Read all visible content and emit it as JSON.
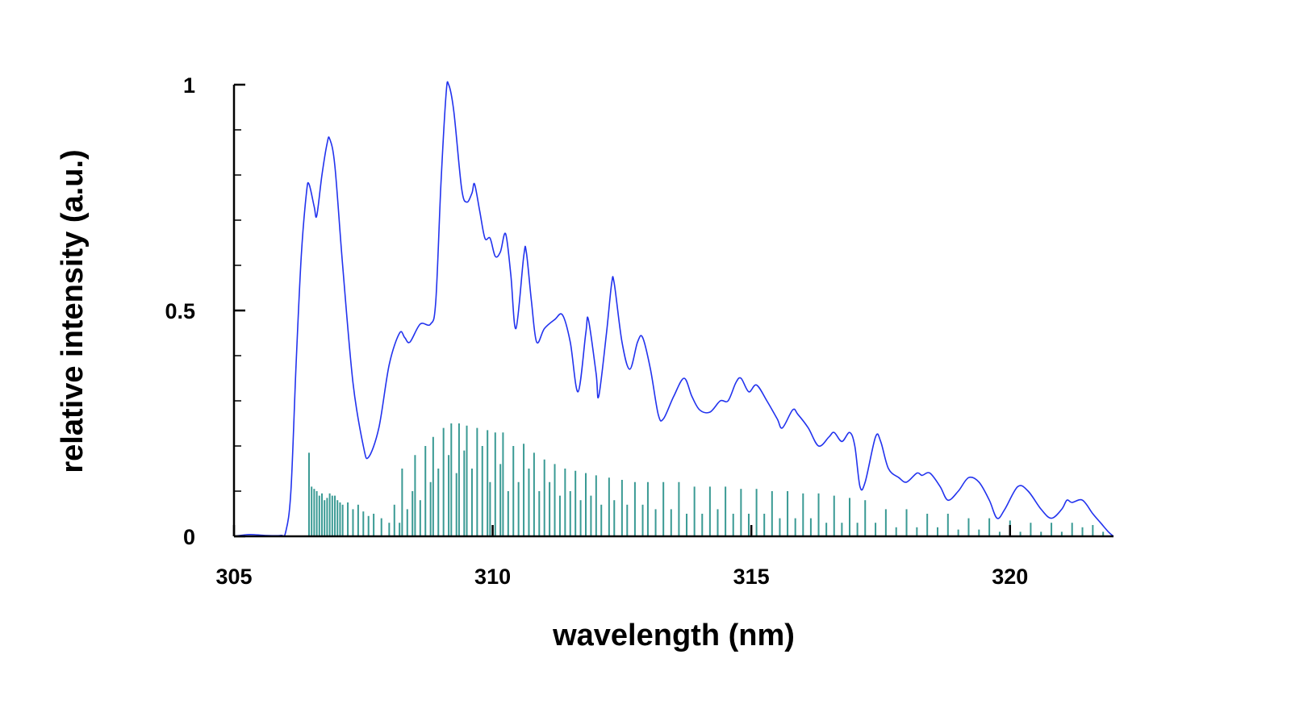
{
  "chart_data": {
    "type": "line",
    "title": "",
    "xlabel": "wavelength (nm)",
    "ylabel": "relative intensity (a.u.)",
    "xlim": [
      305,
      322
    ],
    "ylim": [
      0,
      1
    ],
    "x_ticks": [
      {
        "value": 305,
        "label": "305"
      },
      {
        "value": 310,
        "label": "310"
      },
      {
        "value": 315,
        "label": "315"
      },
      {
        "value": 320,
        "label": "320"
      }
    ],
    "y_ticks": [
      {
        "value": 0,
        "label": "0"
      },
      {
        "value": 0.5,
        "label": "0.5"
      },
      {
        "value": 1,
        "label": "1"
      }
    ],
    "y_minor_ticks": [
      0.1,
      0.2,
      0.3,
      0.4,
      0.6,
      0.7,
      0.8,
      0.9
    ],
    "grid": false,
    "legend": "none",
    "colors": {
      "spectrum": "#2233ee",
      "sticks": "#3a9a94",
      "axis": "#000000"
    },
    "series": [
      {
        "style": "line",
        "points": [
          [
            305.0,
            0.0
          ],
          [
            305.3,
            0.004
          ],
          [
            305.6,
            0.002
          ],
          [
            305.9,
            0.002
          ],
          [
            306.0,
            0.01
          ],
          [
            306.1,
            0.1
          ],
          [
            306.2,
            0.38
          ],
          [
            306.3,
            0.62
          ],
          [
            306.4,
            0.76
          ],
          [
            306.45,
            0.78
          ],
          [
            306.55,
            0.73
          ],
          [
            306.6,
            0.71
          ],
          [
            306.7,
            0.8
          ],
          [
            306.8,
            0.87
          ],
          [
            306.85,
            0.88
          ],
          [
            306.95,
            0.82
          ],
          [
            307.1,
            0.6
          ],
          [
            307.3,
            0.34
          ],
          [
            307.5,
            0.2
          ],
          [
            307.6,
            0.175
          ],
          [
            307.8,
            0.24
          ],
          [
            308.0,
            0.38
          ],
          [
            308.2,
            0.45
          ],
          [
            308.3,
            0.44
          ],
          [
            308.4,
            0.43
          ],
          [
            308.6,
            0.47
          ],
          [
            308.8,
            0.47
          ],
          [
            308.9,
            0.52
          ],
          [
            309.0,
            0.78
          ],
          [
            309.1,
            0.98
          ],
          [
            309.15,
            1.0
          ],
          [
            309.25,
            0.94
          ],
          [
            309.4,
            0.77
          ],
          [
            309.5,
            0.74
          ],
          [
            309.6,
            0.76
          ],
          [
            309.65,
            0.78
          ],
          [
            309.75,
            0.72
          ],
          [
            309.85,
            0.66
          ],
          [
            309.95,
            0.66
          ],
          [
            310.05,
            0.62
          ],
          [
            310.15,
            0.63
          ],
          [
            310.25,
            0.67
          ],
          [
            310.35,
            0.58
          ],
          [
            310.45,
            0.46
          ],
          [
            310.6,
            0.62
          ],
          [
            310.65,
            0.63
          ],
          [
            310.75,
            0.52
          ],
          [
            310.85,
            0.43
          ],
          [
            311.0,
            0.46
          ],
          [
            311.2,
            0.48
          ],
          [
            311.35,
            0.49
          ],
          [
            311.5,
            0.43
          ],
          [
            311.65,
            0.32
          ],
          [
            311.8,
            0.45
          ],
          [
            311.85,
            0.48
          ],
          [
            312.0,
            0.36
          ],
          [
            312.05,
            0.31
          ],
          [
            312.2,
            0.45
          ],
          [
            312.3,
            0.56
          ],
          [
            312.35,
            0.56
          ],
          [
            312.5,
            0.43
          ],
          [
            312.65,
            0.37
          ],
          [
            312.8,
            0.43
          ],
          [
            312.9,
            0.44
          ],
          [
            313.05,
            0.37
          ],
          [
            313.2,
            0.27
          ],
          [
            313.3,
            0.26
          ],
          [
            313.5,
            0.31
          ],
          [
            313.7,
            0.35
          ],
          [
            313.85,
            0.31
          ],
          [
            314.0,
            0.28
          ],
          [
            314.2,
            0.275
          ],
          [
            314.4,
            0.3
          ],
          [
            314.55,
            0.3
          ],
          [
            314.7,
            0.34
          ],
          [
            314.8,
            0.35
          ],
          [
            314.95,
            0.32
          ],
          [
            315.1,
            0.335
          ],
          [
            315.3,
            0.3
          ],
          [
            315.5,
            0.26
          ],
          [
            315.6,
            0.24
          ],
          [
            315.8,
            0.28
          ],
          [
            315.9,
            0.27
          ],
          [
            316.1,
            0.24
          ],
          [
            316.3,
            0.2
          ],
          [
            316.5,
            0.22
          ],
          [
            316.6,
            0.23
          ],
          [
            316.75,
            0.21
          ],
          [
            316.9,
            0.23
          ],
          [
            317.0,
            0.2
          ],
          [
            317.1,
            0.11
          ],
          [
            317.2,
            0.12
          ],
          [
            317.4,
            0.22
          ],
          [
            317.5,
            0.21
          ],
          [
            317.65,
            0.15
          ],
          [
            317.85,
            0.13
          ],
          [
            318.0,
            0.12
          ],
          [
            318.2,
            0.14
          ],
          [
            318.3,
            0.135
          ],
          [
            318.45,
            0.14
          ],
          [
            318.65,
            0.11
          ],
          [
            318.8,
            0.08
          ],
          [
            319.0,
            0.1
          ],
          [
            319.2,
            0.13
          ],
          [
            319.4,
            0.12
          ],
          [
            319.6,
            0.08
          ],
          [
            319.75,
            0.04
          ],
          [
            319.9,
            0.06
          ],
          [
            320.15,
            0.11
          ],
          [
            320.35,
            0.1
          ],
          [
            320.6,
            0.06
          ],
          [
            320.8,
            0.04
          ],
          [
            321.0,
            0.06
          ],
          [
            321.1,
            0.08
          ],
          [
            321.2,
            0.075
          ],
          [
            321.4,
            0.08
          ],
          [
            321.6,
            0.05
          ],
          [
            321.75,
            0.03
          ],
          [
            321.9,
            0.01
          ],
          [
            322.0,
            0.0
          ]
        ]
      },
      {
        "style": "stick",
        "points": [
          [
            306.45,
            0.185
          ],
          [
            306.5,
            0.11
          ],
          [
            306.55,
            0.105
          ],
          [
            306.6,
            0.1
          ],
          [
            306.65,
            0.09
          ],
          [
            306.7,
            0.095
          ],
          [
            306.75,
            0.08
          ],
          [
            306.8,
            0.085
          ],
          [
            306.85,
            0.095
          ],
          [
            306.9,
            0.09
          ],
          [
            306.95,
            0.09
          ],
          [
            307.0,
            0.08
          ],
          [
            307.05,
            0.075
          ],
          [
            307.1,
            0.07
          ],
          [
            307.2,
            0.075
          ],
          [
            307.3,
            0.06
          ],
          [
            307.4,
            0.07
          ],
          [
            307.5,
            0.055
          ],
          [
            307.6,
            0.045
          ],
          [
            307.7,
            0.05
          ],
          [
            307.85,
            0.04
          ],
          [
            308.0,
            0.03
          ],
          [
            308.1,
            0.07
          ],
          [
            308.2,
            0.03
          ],
          [
            308.25,
            0.15
          ],
          [
            308.35,
            0.06
          ],
          [
            308.45,
            0.1
          ],
          [
            308.5,
            0.18
          ],
          [
            308.6,
            0.08
          ],
          [
            308.7,
            0.2
          ],
          [
            308.8,
            0.12
          ],
          [
            308.85,
            0.22
          ],
          [
            308.95,
            0.15
          ],
          [
            309.05,
            0.24
          ],
          [
            309.15,
            0.18
          ],
          [
            309.2,
            0.25
          ],
          [
            309.3,
            0.14
          ],
          [
            309.35,
            0.25
          ],
          [
            309.45,
            0.19
          ],
          [
            309.5,
            0.245
          ],
          [
            309.6,
            0.15
          ],
          [
            309.7,
            0.24
          ],
          [
            309.8,
            0.2
          ],
          [
            309.9,
            0.235
          ],
          [
            309.95,
            0.12
          ],
          [
            310.05,
            0.23
          ],
          [
            310.15,
            0.16
          ],
          [
            310.2,
            0.23
          ],
          [
            310.3,
            0.1
          ],
          [
            310.4,
            0.2
          ],
          [
            310.5,
            0.12
          ],
          [
            310.6,
            0.205
          ],
          [
            310.7,
            0.15
          ],
          [
            310.8,
            0.185
          ],
          [
            310.9,
            0.1
          ],
          [
            311.0,
            0.17
          ],
          [
            311.1,
            0.12
          ],
          [
            311.2,
            0.16
          ],
          [
            311.3,
            0.09
          ],
          [
            311.4,
            0.15
          ],
          [
            311.5,
            0.1
          ],
          [
            311.6,
            0.145
          ],
          [
            311.7,
            0.08
          ],
          [
            311.8,
            0.14
          ],
          [
            311.9,
            0.09
          ],
          [
            312.0,
            0.135
          ],
          [
            312.1,
            0.07
          ],
          [
            312.25,
            0.13
          ],
          [
            312.35,
            0.08
          ],
          [
            312.5,
            0.125
          ],
          [
            312.6,
            0.07
          ],
          [
            312.75,
            0.12
          ],
          [
            312.9,
            0.07
          ],
          [
            313.0,
            0.12
          ],
          [
            313.15,
            0.06
          ],
          [
            313.3,
            0.12
          ],
          [
            313.45,
            0.06
          ],
          [
            313.6,
            0.12
          ],
          [
            313.75,
            0.05
          ],
          [
            313.9,
            0.11
          ],
          [
            314.05,
            0.05
          ],
          [
            314.2,
            0.11
          ],
          [
            314.35,
            0.06
          ],
          [
            314.5,
            0.11
          ],
          [
            314.65,
            0.05
          ],
          [
            314.8,
            0.105
          ],
          [
            314.95,
            0.05
          ],
          [
            315.1,
            0.105
          ],
          [
            315.25,
            0.05
          ],
          [
            315.4,
            0.1
          ],
          [
            315.55,
            0.04
          ],
          [
            315.7,
            0.1
          ],
          [
            315.85,
            0.04
          ],
          [
            316.0,
            0.095
          ],
          [
            316.15,
            0.04
          ],
          [
            316.3,
            0.095
          ],
          [
            316.45,
            0.03
          ],
          [
            316.6,
            0.09
          ],
          [
            316.75,
            0.03
          ],
          [
            316.9,
            0.085
          ],
          [
            317.05,
            0.03
          ],
          [
            317.2,
            0.08
          ],
          [
            317.4,
            0.03
          ],
          [
            317.6,
            0.06
          ],
          [
            317.8,
            0.02
          ],
          [
            318.0,
            0.06
          ],
          [
            318.2,
            0.02
          ],
          [
            318.4,
            0.05
          ],
          [
            318.6,
            0.02
          ],
          [
            318.8,
            0.05
          ],
          [
            319.0,
            0.015
          ],
          [
            319.2,
            0.04
          ],
          [
            319.4,
            0.015
          ],
          [
            319.6,
            0.04
          ],
          [
            319.8,
            0.01
          ],
          [
            320.0,
            0.035
          ],
          [
            320.2,
            0.01
          ],
          [
            320.4,
            0.03
          ],
          [
            320.6,
            0.01
          ],
          [
            320.8,
            0.03
          ],
          [
            321.0,
            0.01
          ],
          [
            321.2,
            0.03
          ],
          [
            321.4,
            0.02
          ],
          [
            321.6,
            0.025
          ],
          [
            321.8,
            0.01
          ]
        ]
      }
    ]
  }
}
